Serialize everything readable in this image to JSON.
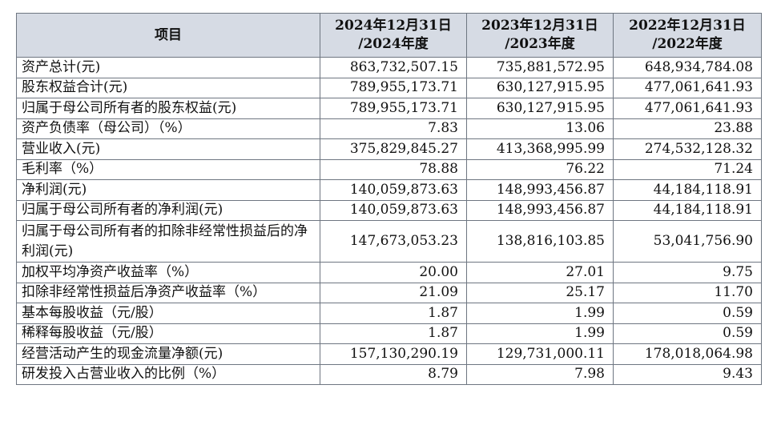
{
  "table": {
    "headers": {
      "item": "项目",
      "col1": [
        "2024年12月31日",
        "/2024年度"
      ],
      "col2": [
        "2023年12月31日",
        "/2023年度"
      ],
      "col3": [
        "2022年12月31日",
        "/2022年度"
      ]
    },
    "rows": [
      {
        "label": "资产总计(元)",
        "v2024": "863,732,507.15",
        "v2023": "735,881,572.95",
        "v2022": "648,934,784.08"
      },
      {
        "label": "股东权益合计(元)",
        "v2024": "789,955,173.71",
        "v2023": "630,127,915.95",
        "v2022": "477,061,641.93"
      },
      {
        "label": "归属于母公司所有者的股东权益(元)",
        "v2024": "789,955,173.71",
        "v2023": "630,127,915.95",
        "v2022": "477,061,641.93"
      },
      {
        "label": "资产负债率（母公司）（%）",
        "v2024": "7.83",
        "v2023": "13.06",
        "v2022": "23.88"
      },
      {
        "label": "营业收入(元)",
        "v2024": "375,829,845.27",
        "v2023": "413,368,995.99",
        "v2022": "274,532,128.32"
      },
      {
        "label": "毛利率（%）",
        "v2024": "78.88",
        "v2023": "76.22",
        "v2022": "71.24"
      },
      {
        "label": "净利润(元)",
        "v2024": "140,059,873.63",
        "v2023": "148,993,456.87",
        "v2022": "44,184,118.91"
      },
      {
        "label": "归属于母公司所有者的净利润(元)",
        "v2024": "140,059,873.63",
        "v2023": "148,993,456.87",
        "v2022": "44,184,118.91"
      },
      {
        "label": "归属于母公司所有者的扣除非经常性损益后的净利润(元)",
        "v2024": "147,673,053.23",
        "v2023": "138,816,103.85",
        "v2022": "53,041,756.90"
      },
      {
        "label": "加权平均净资产收益率（%）",
        "v2024": "20.00",
        "v2023": "27.01",
        "v2022": "9.75"
      },
      {
        "label": "扣除非经常性损益后净资产收益率（%）",
        "v2024": "21.09",
        "v2023": "25.17",
        "v2022": "11.70"
      },
      {
        "label": "基本每股收益（元/股）",
        "v2024": "1.87",
        "v2023": "1.99",
        "v2022": "0.59"
      },
      {
        "label": "稀释每股收益（元/股）",
        "v2024": "1.87",
        "v2023": "1.99",
        "v2022": "0.59"
      },
      {
        "label": "经营活动产生的现金流量净额(元)",
        "v2024": "157,130,290.19",
        "v2023": "129,731,000.11",
        "v2022": "178,018,064.98"
      },
      {
        "label": "研发投入占营业收入的比例（%）",
        "v2024": "8.79",
        "v2023": "7.98",
        "v2022": "9.43"
      }
    ]
  }
}
